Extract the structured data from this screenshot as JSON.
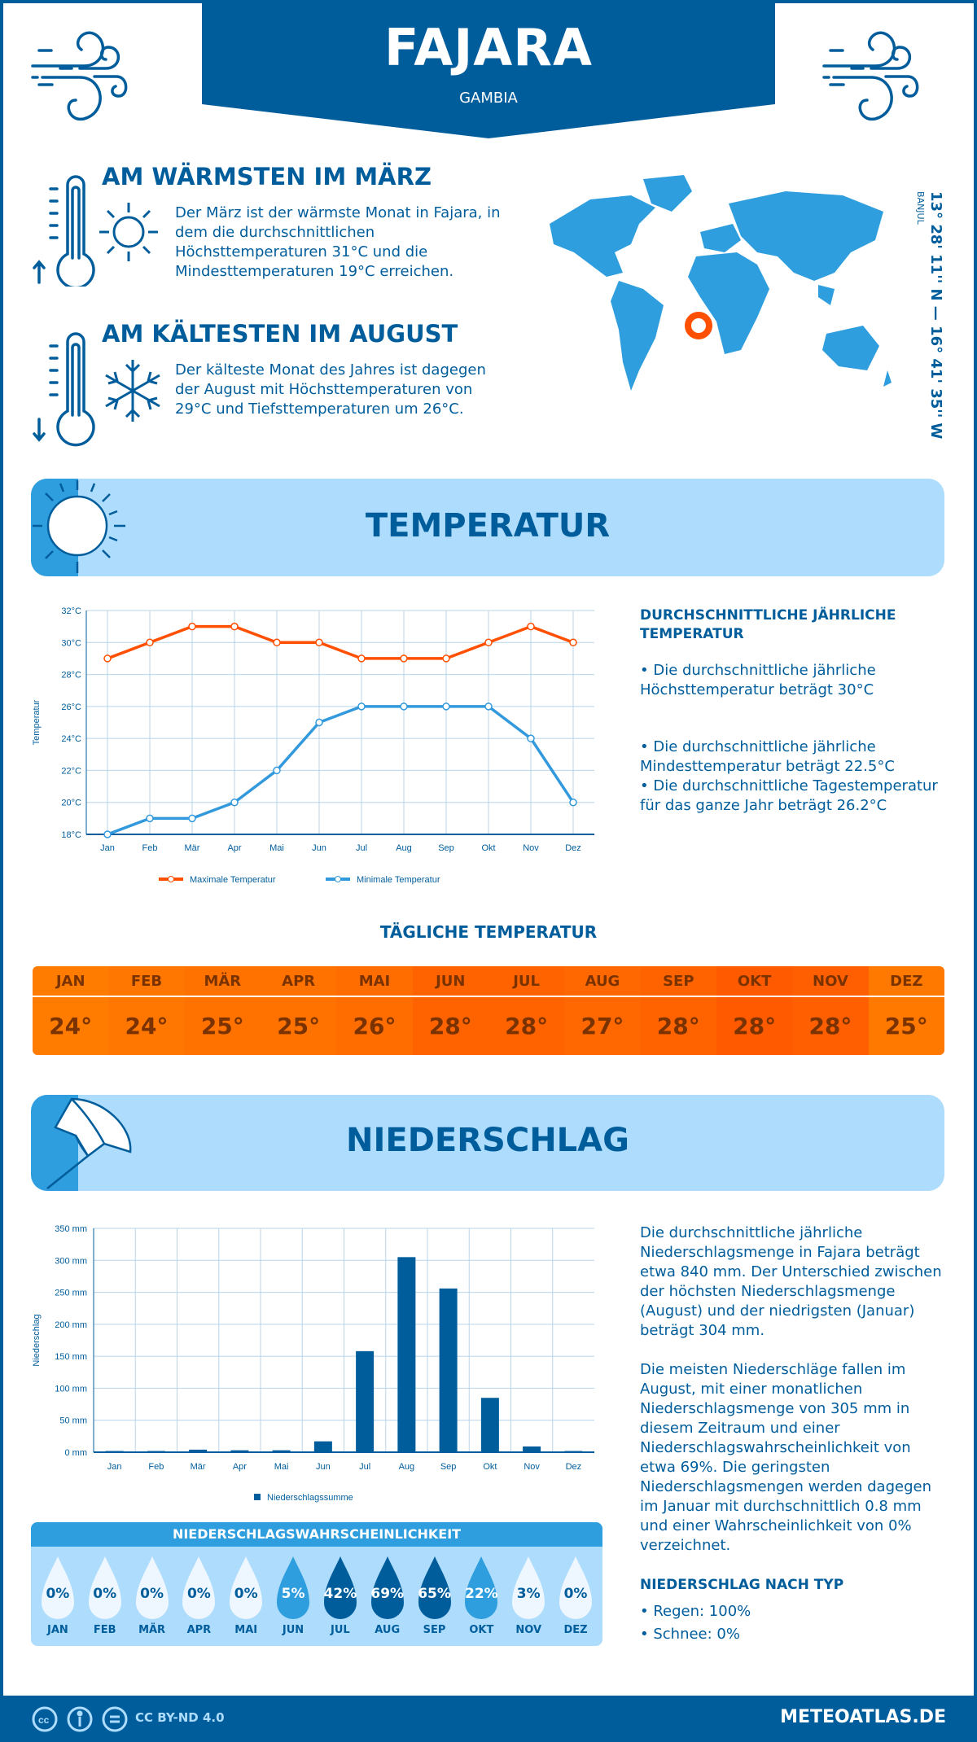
{
  "header": {
    "title": "FAJARA",
    "subtitle": "GAMBIA"
  },
  "warmest": {
    "heading": "AM WÄRMSTEN IM MÄRZ",
    "text": "Der März ist der wärmste Monat in Fajara, in dem die durchschnittlichen Höchsttemperaturen 31°C und die Mindesttemperaturen 19°C erreichen."
  },
  "coldest": {
    "heading": "AM KÄLTESTEN IM AUGUST",
    "text": "Der kälteste Monat des Jahres ist dagegen der August mit Höchsttemperaturen von 29°C und Tiefsttemperaturen um 26°C."
  },
  "location": {
    "coords": "13° 28' 11'' N — 16° 41' 35'' W",
    "region": "BANJUL"
  },
  "temperature": {
    "section_title": "TEMPERATUR",
    "annual_heading": "DURCHSCHNITTLICHE JÄHRLICHE TEMPERATUR",
    "bullets": [
      "• Die durchschnittliche jährliche Höchsttemperatur beträgt 30°C",
      "• Die durchschnittliche jährliche Mindesttemperatur beträgt 22.5°C",
      "• Die durchschnittliche Tagestemperatur für das ganze Jahr beträgt 26.2°C"
    ],
    "daily_heading": "TÄGLICHE TEMPERATUR",
    "daily": [
      {
        "m": "JAN",
        "v": "24°",
        "c": "#ff7c00"
      },
      {
        "m": "FEB",
        "v": "24°",
        "c": "#ff7700"
      },
      {
        "m": "MÄR",
        "v": "25°",
        "c": "#ff7200"
      },
      {
        "m": "APR",
        "v": "25°",
        "c": "#ff7200"
      },
      {
        "m": "MAI",
        "v": "26°",
        "c": "#ff6d00"
      },
      {
        "m": "JUN",
        "v": "28°",
        "c": "#ff6300"
      },
      {
        "m": "JUL",
        "v": "28°",
        "c": "#ff6300"
      },
      {
        "m": "AUG",
        "v": "27°",
        "c": "#ff6800"
      },
      {
        "m": "SEP",
        "v": "28°",
        "c": "#ff6300"
      },
      {
        "m": "OKT",
        "v": "28°",
        "c": "#ff5a00"
      },
      {
        "m": "NOV",
        "v": "28°",
        "c": "#ff5f00"
      },
      {
        "m": "DEZ",
        "v": "25°",
        "c": "#ff7800"
      }
    ]
  },
  "precipitation": {
    "section_title": "NIEDERSCHLAG",
    "text1": "Die durchschnittliche jährliche Niederschlagsmenge in Fajara beträgt etwa 840 mm. Der Unterschied zwischen der höchsten Niederschlagsmenge (August) und der niedrigsten (Januar) beträgt 304 mm.",
    "text2": "Die meisten Niederschläge fallen im August, mit einer monatlichen Niederschlagsmenge von 305 mm in diesem Zeitraum und einer Niederschlagswahrscheinlichkeit von etwa 69%. Die geringsten Niederschlagsmengen werden dagegen im Januar mit durchschnittlich 0.8 mm und einer Wahrscheinlichkeit von 0% verzeichnet.",
    "type_heading": "NIEDERSCHLAG NACH TYP",
    "types": [
      "• Regen: 100%",
      "• Schnee: 0%"
    ],
    "prob_heading": "NIEDERSCHLAGSWAHRSCHEINLICHKEIT",
    "probability": [
      {
        "m": "JAN",
        "v": "0%"
      },
      {
        "m": "FEB",
        "v": "0%"
      },
      {
        "m": "MÄR",
        "v": "0%"
      },
      {
        "m": "APR",
        "v": "0%"
      },
      {
        "m": "MAI",
        "v": "0%"
      },
      {
        "m": "JUN",
        "v": "5%"
      },
      {
        "m": "JUL",
        "v": "42%"
      },
      {
        "m": "AUG",
        "v": "69%"
      },
      {
        "m": "SEP",
        "v": "65%"
      },
      {
        "m": "OKT",
        "v": "22%"
      },
      {
        "m": "NOV",
        "v": "3%"
      },
      {
        "m": "DEZ",
        "v": "0%"
      }
    ]
  },
  "footer": {
    "license": "CC BY-ND 4.0",
    "site": "METEOATLAS.DE"
  },
  "colors": {
    "primary": "#005d9c",
    "accent": "#2e9ede",
    "banner": "#aedcfc",
    "max_line": "#ff4f00",
    "min_line": "#3399dd"
  },
  "chart_data": [
    {
      "type": "line",
      "categories": [
        "Jan",
        "Feb",
        "Mär",
        "Apr",
        "Mai",
        "Jun",
        "Jul",
        "Aug",
        "Sep",
        "Okt",
        "Nov",
        "Dez"
      ],
      "series": [
        {
          "name": "Maximale Temperatur",
          "values": [
            29,
            30,
            31,
            31,
            30,
            30,
            29,
            29,
            29,
            30,
            31,
            30
          ]
        },
        {
          "name": "Minimale Temperatur",
          "values": [
            18,
            19,
            19,
            20,
            22,
            25,
            26,
            26,
            26,
            26,
            24,
            20
          ]
        }
      ],
      "ylabel": "Temperatur",
      "ylim": [
        18,
        32
      ],
      "yticks": [
        "18°C",
        "20°C",
        "22°C",
        "24°C",
        "26°C",
        "28°C",
        "30°C",
        "32°C"
      ],
      "grid": true,
      "legend": "bottom"
    },
    {
      "type": "bar",
      "categories": [
        "Jan",
        "Feb",
        "Mär",
        "Apr",
        "Mai",
        "Jun",
        "Jul",
        "Aug",
        "Sep",
        "Okt",
        "Nov",
        "Dez"
      ],
      "series": [
        {
          "name": "Niederschlagssumme",
          "values": [
            0.8,
            1,
            4,
            3,
            3,
            17,
            158,
            305,
            256,
            85,
            9,
            1
          ]
        }
      ],
      "ylabel": "Niederschlag",
      "ylim": [
        0,
        350
      ],
      "yticks": [
        "0 mm",
        "50 mm",
        "100 mm",
        "150 mm",
        "200 mm",
        "250 mm",
        "300 mm",
        "350 mm"
      ],
      "grid": true,
      "legend": "bottom"
    }
  ]
}
